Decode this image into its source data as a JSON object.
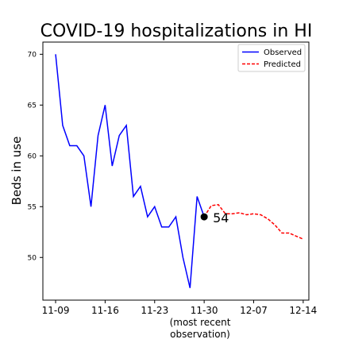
{
  "chart_data": {
    "type": "line",
    "title": "COVID-19 hospitalizations in HI",
    "ylabel": "Beds in use",
    "xlabel_lines": [
      "(most recent",
      "observation)"
    ],
    "ylim": [
      45.8,
      71.2
    ],
    "yticks": [
      50,
      55,
      60,
      65,
      70
    ],
    "x_start": "11-08",
    "xlim_days": [
      -0.8,
      36.8
    ],
    "xticks": [
      {
        "label": "11-09",
        "day": 1
      },
      {
        "label": "11-16",
        "day": 8
      },
      {
        "label": "11-23",
        "day": 15
      },
      {
        "label": "11-30",
        "day": 22
      },
      {
        "label": "12-07",
        "day": 29
      },
      {
        "label": "12-14",
        "day": 36
      }
    ],
    "series": [
      {
        "name": "Observed",
        "color": "#0000ff",
        "style": "solid",
        "dates": [
          "11-09",
          "11-10",
          "11-11",
          "11-12",
          "11-13",
          "11-14",
          "11-15",
          "11-16",
          "11-17",
          "11-18",
          "11-19",
          "11-20",
          "11-21",
          "11-22",
          "11-23",
          "11-24",
          "11-25",
          "11-26",
          "11-27",
          "11-28",
          "11-29",
          "11-30"
        ],
        "values": [
          70,
          63,
          61,
          61,
          60,
          55,
          62,
          65,
          59,
          62,
          63,
          56,
          57,
          54,
          55,
          53,
          53,
          54,
          50,
          47,
          56,
          54
        ]
      },
      {
        "name": "Predicted",
        "color": "#ff0000",
        "style": "dashed",
        "dates": [
          "11-30",
          "12-01",
          "12-02",
          "12-03",
          "12-04",
          "12-05",
          "12-06",
          "12-07",
          "12-08",
          "12-09",
          "12-10",
          "12-11",
          "12-12",
          "12-13",
          "12-14"
        ],
        "values": [
          54,
          55.1,
          55.2,
          54.3,
          54.3,
          54.4,
          54.2,
          54.3,
          54.2,
          53.8,
          53.2,
          52.4,
          52.4,
          52.1,
          51.8
        ]
      }
    ],
    "annotation": {
      "label": "54",
      "date": "11-30",
      "value": 54
    },
    "legend_position": "top-right",
    "grid": false
  }
}
